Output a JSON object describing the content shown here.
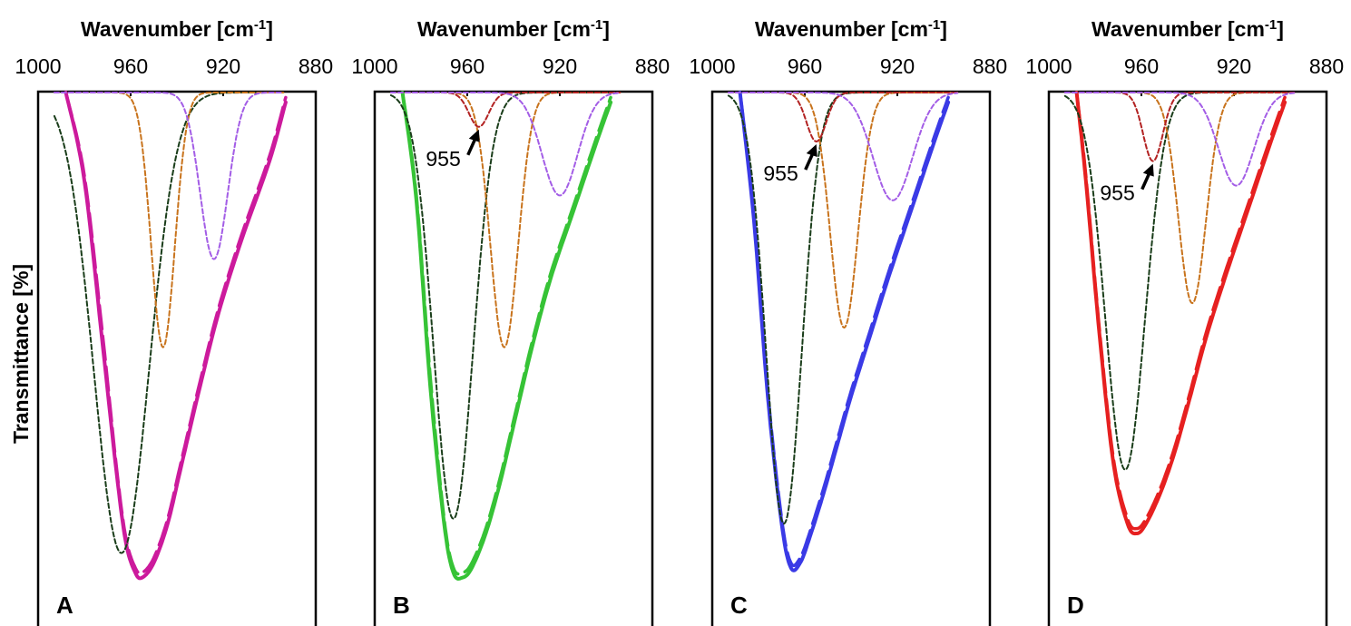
{
  "chart_data": {
    "type": "line",
    "ylabel": "Transmittance [%]",
    "x_tick_labels": [
      "1000",
      "960",
      "920",
      "880"
    ],
    "xlim": [
      1000,
      880
    ],
    "x_reversed": true,
    "panels": [
      {
        "label": "A",
        "xlabel_main": "Wavenumber [cm",
        "xlabel_sup": "-1",
        "xlabel_end": "]",
        "envelope_color": "#cc1a9c",
        "series": [
          {
            "role": "measured",
            "style": "solid",
            "color": "#cc1a9c",
            "x": [
              988,
              980,
              972,
              966,
              962,
              958,
              955,
              950,
              944,
              938,
              930,
              922,
              912,
              900,
              893
            ],
            "y": [
              0,
              18,
              52,
              78,
              92,
              98,
              99,
              96,
              88,
              76,
              60,
              45,
              30,
              14,
              2
            ]
          },
          {
            "role": "fit",
            "style": "dashed",
            "color": "#cc1a9c",
            "x": [
              988,
              980,
              972,
              966,
              962,
              958,
              955,
              950,
              944,
              938,
              930,
              922,
              912,
              900,
              893
            ],
            "y": [
              0,
              17,
              50,
              77,
              91,
              97,
              98,
              95,
              87,
              75,
              59,
              44,
              29,
              13,
              1
            ]
          },
          {
            "role": "component",
            "style": "dotted",
            "color": "#1a3d1a",
            "center": 964,
            "depth": 94,
            "hwhm": 14
          },
          {
            "role": "component",
            "style": "dotted",
            "color": "#c8731c",
            "center": 946,
            "depth": 52,
            "hwhm": 6
          },
          {
            "role": "component",
            "style": "dotted",
            "color": "#a35de6",
            "center": 924,
            "depth": 34,
            "hwhm": 7
          }
        ]
      },
      {
        "label": "B",
        "xlabel_main": "Wavenumber [cm",
        "xlabel_sup": "-1",
        "xlabel_end": "]",
        "envelope_color": "#36c336",
        "annotation": "955",
        "series": [
          {
            "role": "measured",
            "style": "solid",
            "color": "#36c336",
            "x": [
              988,
              982,
              976,
              970,
              966,
              962,
              958,
              952,
              946,
              940,
              932,
              924,
              914,
              904,
              898
            ],
            "y": [
              0,
              22,
              60,
              88,
              98,
              99,
              97,
              90,
              80,
              68,
              52,
              38,
              24,
              10,
              2
            ]
          },
          {
            "role": "fit",
            "style": "dashed",
            "color": "#36c336",
            "x": [
              988,
              982,
              976,
              970,
              966,
              962,
              958,
              952,
              946,
              940,
              932,
              924,
              914,
              904,
              898
            ],
            "y": [
              0,
              21,
              58,
              87,
              97,
              98,
              96,
              89,
              79,
              67,
              51,
              37,
              23,
              9,
              1
            ]
          },
          {
            "role": "component",
            "style": "dotted",
            "color": "#1a3d1a",
            "center": 966,
            "depth": 87,
            "hwhm": 10
          },
          {
            "role": "component",
            "style": "dotted",
            "color": "#c8731c",
            "center": 944,
            "depth": 52,
            "hwhm": 7
          },
          {
            "role": "component",
            "style": "dotted",
            "color": "#b22222",
            "center": 955,
            "depth": 7,
            "hwhm": 5
          },
          {
            "role": "component",
            "style": "dotted",
            "color": "#a35de6",
            "center": 920,
            "depth": 21,
            "hwhm": 9
          }
        ]
      },
      {
        "label": "C",
        "xlabel_main": "Wavenumber [cm",
        "xlabel_sup": "-1",
        "xlabel_end": "]",
        "envelope_color": "#3a3ae6",
        "annotation": "955",
        "series": [
          {
            "role": "measured",
            "style": "solid",
            "color": "#3a3ae6",
            "x": [
              988,
              982,
              976,
              970,
              966,
              962,
              958,
              952,
              946,
              940,
              932,
              924,
              914,
              904,
              898
            ],
            "y": [
              0,
              26,
              62,
              88,
              97,
              96,
              91,
              82,
              72,
              62,
              50,
              38,
              24,
              10,
              2
            ]
          },
          {
            "role": "fit",
            "style": "dashed",
            "color": "#3a3ae6",
            "x": [
              988,
              982,
              976,
              970,
              966,
              962,
              958,
              952,
              946,
              940,
              932,
              924,
              914,
              904,
              898
            ],
            "y": [
              0,
              25,
              61,
              87,
              96,
              95,
              90,
              81,
              71,
              61,
              49,
              37,
              23,
              9,
              1
            ]
          },
          {
            "role": "component",
            "style": "dotted",
            "color": "#1a3d1a",
            "center": 969,
            "depth": 88,
            "hwhm": 9
          },
          {
            "role": "component",
            "style": "dotted",
            "color": "#c8731c",
            "center": 943,
            "depth": 48,
            "hwhm": 7
          },
          {
            "role": "component",
            "style": "dotted",
            "color": "#b22222",
            "center": 955,
            "depth": 10,
            "hwhm": 5
          },
          {
            "role": "component",
            "style": "dotted",
            "color": "#a35de6",
            "center": 922,
            "depth": 22,
            "hwhm": 10
          }
        ]
      },
      {
        "label": "D",
        "xlabel_main": "Wavenumber [cm",
        "xlabel_sup": "-1",
        "xlabel_end": "]",
        "envelope_color": "#e62020",
        "annotation": "955",
        "series": [
          {
            "role": "measured",
            "style": "solid",
            "color": "#e62020",
            "x": [
              988,
              984,
              978,
              972,
              966,
              962,
              958,
              952,
              946,
              940,
              932,
              924,
              914,
              904,
              898
            ],
            "y": [
              0,
              18,
              50,
              76,
              88,
              90,
              88,
              82,
              74,
              64,
              50,
              38,
              24,
              10,
              2
            ]
          },
          {
            "role": "fit",
            "style": "dashed",
            "color": "#e62020",
            "x": [
              988,
              984,
              978,
              972,
              966,
              962,
              958,
              952,
              946,
              940,
              932,
              924,
              914,
              904,
              898
            ],
            "y": [
              0,
              17,
              49,
              75,
              87,
              89,
              87,
              81,
              73,
              63,
              49,
              37,
              23,
              9,
              1
            ]
          },
          {
            "role": "component",
            "style": "dotted",
            "color": "#1a3d1a",
            "center": 967,
            "depth": 77,
            "hwhm": 10
          },
          {
            "role": "component",
            "style": "dotted",
            "color": "#c8731c",
            "center": 938,
            "depth": 43,
            "hwhm": 7
          },
          {
            "role": "component",
            "style": "dotted",
            "color": "#b22222",
            "center": 955,
            "depth": 14,
            "hwhm": 5
          },
          {
            "role": "component",
            "style": "dotted",
            "color": "#a35de6",
            "center": 919,
            "depth": 19,
            "hwhm": 9
          }
        ]
      }
    ]
  }
}
